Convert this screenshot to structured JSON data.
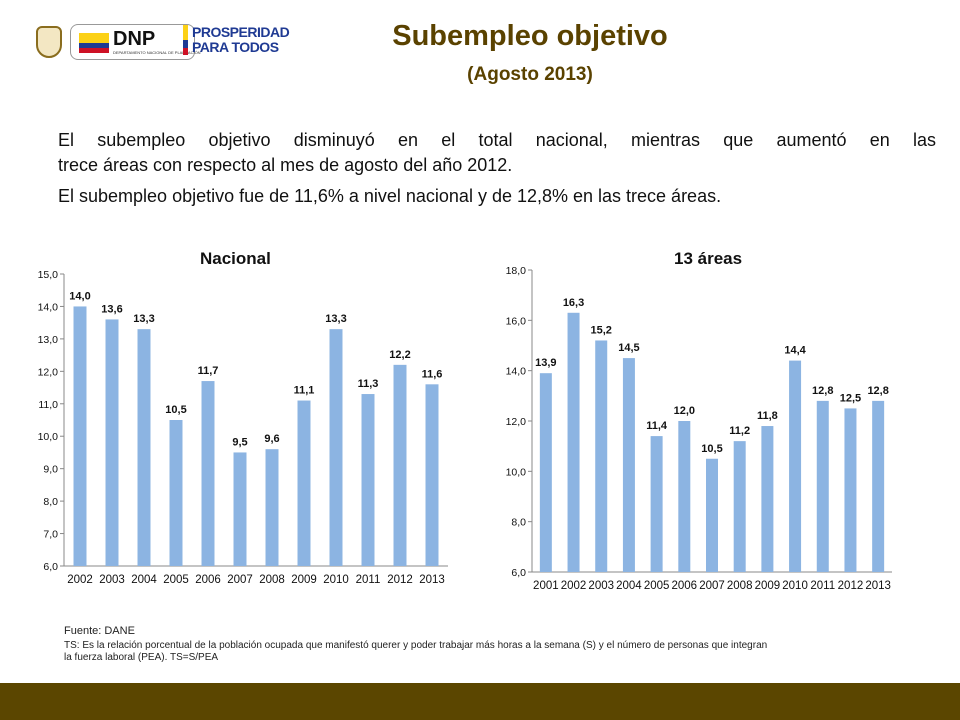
{
  "header": {
    "title": "Subempleo objetivo",
    "subtitle": "(Agosto 2013)",
    "logos": {
      "dnp_text": "DNP",
      "dnp_subtext": "DEPARTAMENTO NACIONAL DE PLANEACIÓN",
      "prosperidad_line1": "PROSPERIDAD",
      "prosperidad_line2": "PARA TODOS"
    }
  },
  "body": {
    "paragraph_line1": "El subempleo objetivo disminuyó en el total nacional, mientras que aumentó en las",
    "paragraph_line2": "trece áreas con respecto al mes de agosto del año 2012.",
    "paragraph_line3": "El subempleo objetivo fue de 11,6% a nivel nacional y de 12,8% en las trece áreas."
  },
  "footnote": {
    "source": "Fuente: DANE",
    "note_line1": "TS: Es la relación porcentual de la población ocupada que manifestó querer y poder trabajar más horas a la semana (S) y el número de personas que integran",
    "note_line2": "la fuerza laboral (PEA). TS=S/PEA"
  },
  "colors": {
    "bar": "#8cb4e2",
    "title_brown": "#5a4200",
    "bottom_band": "#5b4600"
  },
  "chart_data": [
    {
      "type": "bar",
      "title": "Nacional",
      "categories": [
        "2002",
        "2003",
        "2004",
        "2005",
        "2006",
        "2007",
        "2008",
        "2009",
        "2010",
        "2011",
        "2012",
        "2013"
      ],
      "values": [
        14.0,
        13.6,
        13.3,
        10.5,
        11.7,
        9.5,
        9.6,
        11.1,
        13.3,
        11.3,
        12.2,
        11.6
      ],
      "value_labels": [
        "14,0",
        "13,6",
        "13,3",
        "10,5",
        "11,7",
        "9,5",
        "9,6",
        "11,1",
        "13,3",
        "11,3",
        "12,2",
        "11,6"
      ],
      "ylim": [
        6,
        15
      ],
      "yticks": [
        "6,0",
        "7,0",
        "8,0",
        "9,0",
        "10,0",
        "11,0",
        "12,0",
        "13,0",
        "14,0",
        "15,0"
      ],
      "grid": false,
      "legend": "none"
    },
    {
      "type": "bar",
      "title": "13 áreas",
      "categories": [
        "2001",
        "2002",
        "2003",
        "2004",
        "2005",
        "2006",
        "2007",
        "2008",
        "2009",
        "2010",
        "2011",
        "2012",
        "2013"
      ],
      "values": [
        13.9,
        16.3,
        15.2,
        14.5,
        11.4,
        12.0,
        10.5,
        11.2,
        11.8,
        14.4,
        12.8,
        12.5,
        12.8
      ],
      "value_labels": [
        "13,9",
        "16,3",
        "15,2",
        "14,5",
        "11,4",
        "12,0",
        "10,5",
        "11,2",
        "11,8",
        "14,4",
        "12,8",
        "12,5",
        "12,8"
      ],
      "ylim": [
        6,
        18
      ],
      "yticks": [
        "6,0",
        "8,0",
        "10,0",
        "12,0",
        "14,0",
        "16,0",
        "18,0"
      ],
      "grid": false,
      "legend": "none"
    }
  ]
}
